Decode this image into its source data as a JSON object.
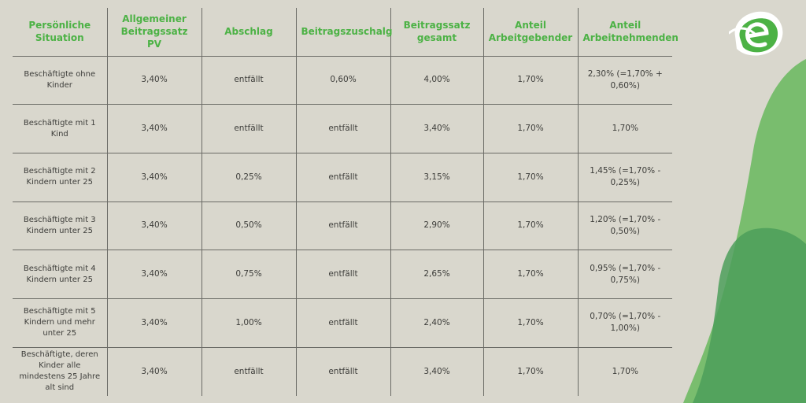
{
  "table": {
    "headers": [
      "Persönliche Situation",
      "Allgemeiner Beitragssatz PV",
      "Abschlag",
      "Beitragszuschalg",
      "Beitragssatz gesamt",
      "Anteil Arbeitgebender",
      "Anteil Arbeitnehmenden"
    ],
    "rows": [
      [
        "Beschäftigte ohne Kinder",
        "3,40%",
        "entfällt",
        "0,60%",
        "4,00%",
        "1,70%",
        "2,30% (=1,70% + 0,60%)"
      ],
      [
        "Beschäftigte mit 1 Kind",
        "3,40%",
        "entfällt",
        "entfällt",
        "3,40%",
        "1,70%",
        "1,70%"
      ],
      [
        "Beschäftigte mit 2 Kindern unter 25",
        "3,40%",
        "0,25%",
        "entfällt",
        "3,15%",
        "1,70%",
        "1,45% (=1,70% - 0,25%)"
      ],
      [
        "Beschäftigte mit 3 Kindern unter 25",
        "3,40%",
        "0,50%",
        "entfällt",
        "2,90%",
        "1,70%",
        "1,20% (=1,70% - 0,50%)"
      ],
      [
        "Beschäftigte mit 4 Kindern unter 25",
        "3,40%",
        "0,75%",
        "entfällt",
        "2,65%",
        "1,70%",
        "0,95% (=1,70% - 0,75%)"
      ],
      [
        "Beschäftigte mit 5 Kindern und mehr unter 25",
        "3,40%",
        "1,00%",
        "entfällt",
        "2,40%",
        "1,70%",
        "0,70% (=1,70% - 1,00%)"
      ],
      [
        "Beschäftigte, deren Kinder alle mindestens 25 Jahre alt sind",
        "3,40%",
        "entfällt",
        "entfällt",
        "3,40%",
        "1,70%",
        "1,70%"
      ]
    ]
  },
  "colors": {
    "background": "#d9d7cd",
    "accent": "#4cb245",
    "text": "#3d3d3a",
    "grid": "#6b6b66",
    "blob_light": "#78bd6e",
    "blob_dark": "#3f9a5a"
  },
  "logo": {
    "icon": "e-leaf-logo-icon"
  }
}
